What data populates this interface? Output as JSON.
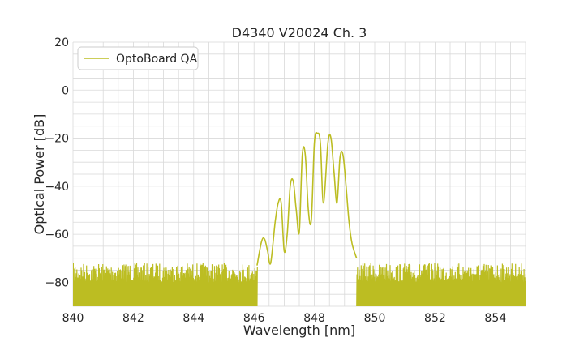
{
  "chart_data": {
    "type": "line",
    "title": "D4340 V20024 Ch. 3",
    "xlabel": "Wavelength [nm]",
    "ylabel": "Optical Power [dB]",
    "xlim": [
      840,
      855
    ],
    "ylim": [
      -90,
      20
    ],
    "x_ticks": [
      840,
      842,
      844,
      846,
      848,
      850,
      852,
      854
    ],
    "y_ticks": [
      20,
      0,
      -20,
      -40,
      -60,
      -80
    ],
    "x_tick_labels": [
      "840",
      "842",
      "844",
      "846",
      "848",
      "850",
      "852",
      "854"
    ],
    "y_tick_labels": [
      "20",
      "0",
      "−20",
      "−40",
      "−60",
      "−80"
    ],
    "grid": true,
    "minor_grid": true,
    "legend_position": "top-left",
    "series": [
      {
        "name": "OptoBoard QA",
        "color": "#bcbd22",
        "noise_floor": {
          "x_ranges": [
            [
              840,
              846.1
            ],
            [
              849.4,
              855
            ]
          ],
          "y_min": -90,
          "y_max": -72
        },
        "x": [
          846.1,
          846.25,
          846.35,
          846.45,
          846.55,
          846.7,
          846.8,
          846.9,
          847.0,
          847.1,
          847.2,
          847.3,
          847.4,
          847.5,
          847.6,
          847.7,
          847.8,
          847.9,
          848.0,
          848.1,
          848.2,
          848.3,
          848.45,
          848.55,
          848.65,
          848.75,
          848.85,
          848.95,
          849.05,
          849.15,
          849.25,
          849.4
        ],
        "y": [
          -73,
          -63,
          -62,
          -67,
          -72,
          -55,
          -47,
          -47,
          -67,
          -60,
          -40,
          -38,
          -50,
          -59,
          -27,
          -27,
          -50,
          -54,
          -22,
          -18,
          -22,
          -47,
          -22,
          -20,
          -34,
          -47,
          -28,
          -27,
          -40,
          -55,
          -64,
          -70
        ]
      }
    ]
  }
}
